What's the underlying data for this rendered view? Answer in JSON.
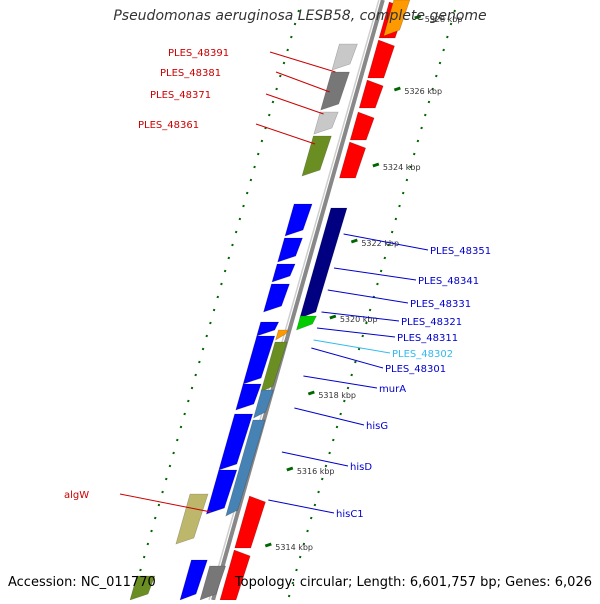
{
  "title": "Pseudomonas aeruginosa LESB58, complete genome",
  "footer": {
    "accession": "Accession: NC_011770",
    "summary": "Topology: circular; Length: 6,601,757 bp; Genes: 6,026"
  },
  "ticks": [
    {
      "label": "5328 kbp"
    },
    {
      "label": "5326 kbp"
    },
    {
      "label": "5324 kbp"
    },
    {
      "label": "5322 kbp"
    },
    {
      "label": "5320 kbp"
    },
    {
      "label": "5318 kbp"
    },
    {
      "label": "5316 kbp"
    },
    {
      "label": "5314 kbp"
    }
  ],
  "left_labels": [
    {
      "text": "PLES_48391",
      "color": "#cc0000"
    },
    {
      "text": "PLES_48381",
      "color": "#cc0000"
    },
    {
      "text": "PLES_48371",
      "color": "#cc0000"
    },
    {
      "text": "PLES_48361",
      "color": "#cc0000"
    },
    {
      "text": "algW",
      "color": "#cc0000"
    }
  ],
  "right_labels": [
    {
      "text": "PLES_48351",
      "color": "#0000cc"
    },
    {
      "text": "PLES_48341",
      "color": "#0000cc"
    },
    {
      "text": "PLES_48331",
      "color": "#0000cc"
    },
    {
      "text": "PLES_48321",
      "color": "#0000cc"
    },
    {
      "text": "PLES_48311",
      "color": "#0000cc"
    },
    {
      "text": "PLES_48302",
      "color": "#33bbee"
    },
    {
      "text": "PLES_48301",
      "color": "#0000cc"
    },
    {
      "text": "murA",
      "color": "#0000cc"
    },
    {
      "text": "hisG",
      "color": "#0000cc"
    },
    {
      "text": "hisD",
      "color": "#0000cc"
    },
    {
      "text": "hisC1",
      "color": "#0000cc"
    }
  ],
  "colors": {
    "red": "#ff0000",
    "blue": "#0000ff",
    "navy": "#000080",
    "steel": "#4682b4",
    "olive": "#6b8e23",
    "khaki": "#bdb76b",
    "orange": "#ff9900",
    "green": "#00cc00",
    "gray": "#777777",
    "lightgray": "#c8c8c8",
    "backbone": "#888888",
    "tick": "#006600"
  }
}
